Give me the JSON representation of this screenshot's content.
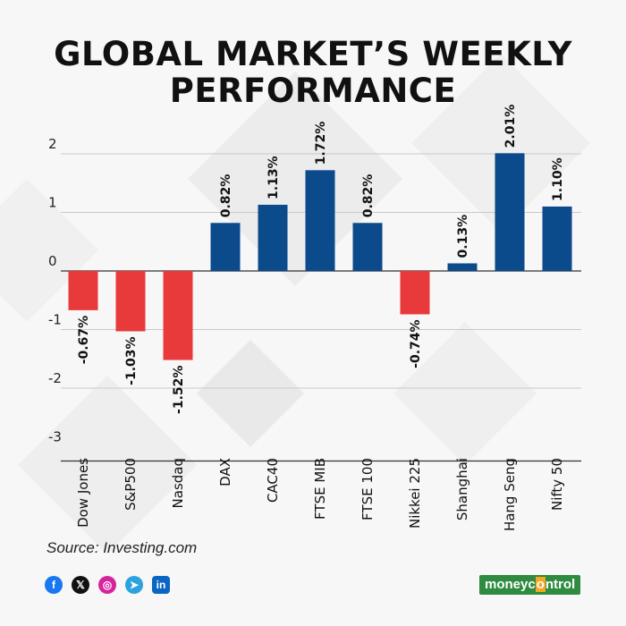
{
  "title_line1": "GLOBAL MARKET’S WEEKLY",
  "title_line2": "PERFORMANCE",
  "source": "Source: Investing.com",
  "brand": {
    "part1": "money",
    "part2": "c",
    "part3": "o",
    "part4": "ntrol"
  },
  "socials": [
    {
      "icon": "facebook-icon",
      "glyph": "f",
      "color": "#1877f2"
    },
    {
      "icon": "x-icon",
      "glyph": "𝕏",
      "color": "#111111"
    },
    {
      "icon": "instagram-icon",
      "glyph": "◎",
      "color": "#d6249f"
    },
    {
      "icon": "telegram-icon",
      "glyph": "➤",
      "color": "#2aa3df"
    },
    {
      "icon": "linkedin-icon",
      "glyph": "in",
      "color": "#0a66c2"
    }
  ],
  "colors": {
    "positive": "#0b4a8b",
    "negative": "#e83a3a"
  },
  "chart_data": {
    "type": "bar",
    "categories": [
      "Dow Jones",
      "S&P500",
      "Nasdaq",
      "DAX",
      "CAC40",
      "FTSE MIB",
      "FTSE 100",
      "Nikkei 225",
      "Shanghai",
      "Hang Seng",
      "Nifty 50"
    ],
    "values": [
      -0.67,
      -1.03,
      -1.52,
      0.82,
      1.13,
      1.72,
      0.82,
      -0.74,
      0.13,
      2.01,
      1.1
    ],
    "data_labels": [
      "-0.67%",
      "-1.03%",
      "-1.52%",
      "0.82%",
      "1.13%",
      "1.72%",
      "0.82%",
      "-0.74%",
      "0.13%",
      "2.01%",
      "1.10%"
    ],
    "yticks": [
      "2",
      "1",
      "0",
      "-1",
      "-2",
      "-3"
    ],
    "ylim": [
      -3.1,
      2.1
    ],
    "grid": true
  }
}
